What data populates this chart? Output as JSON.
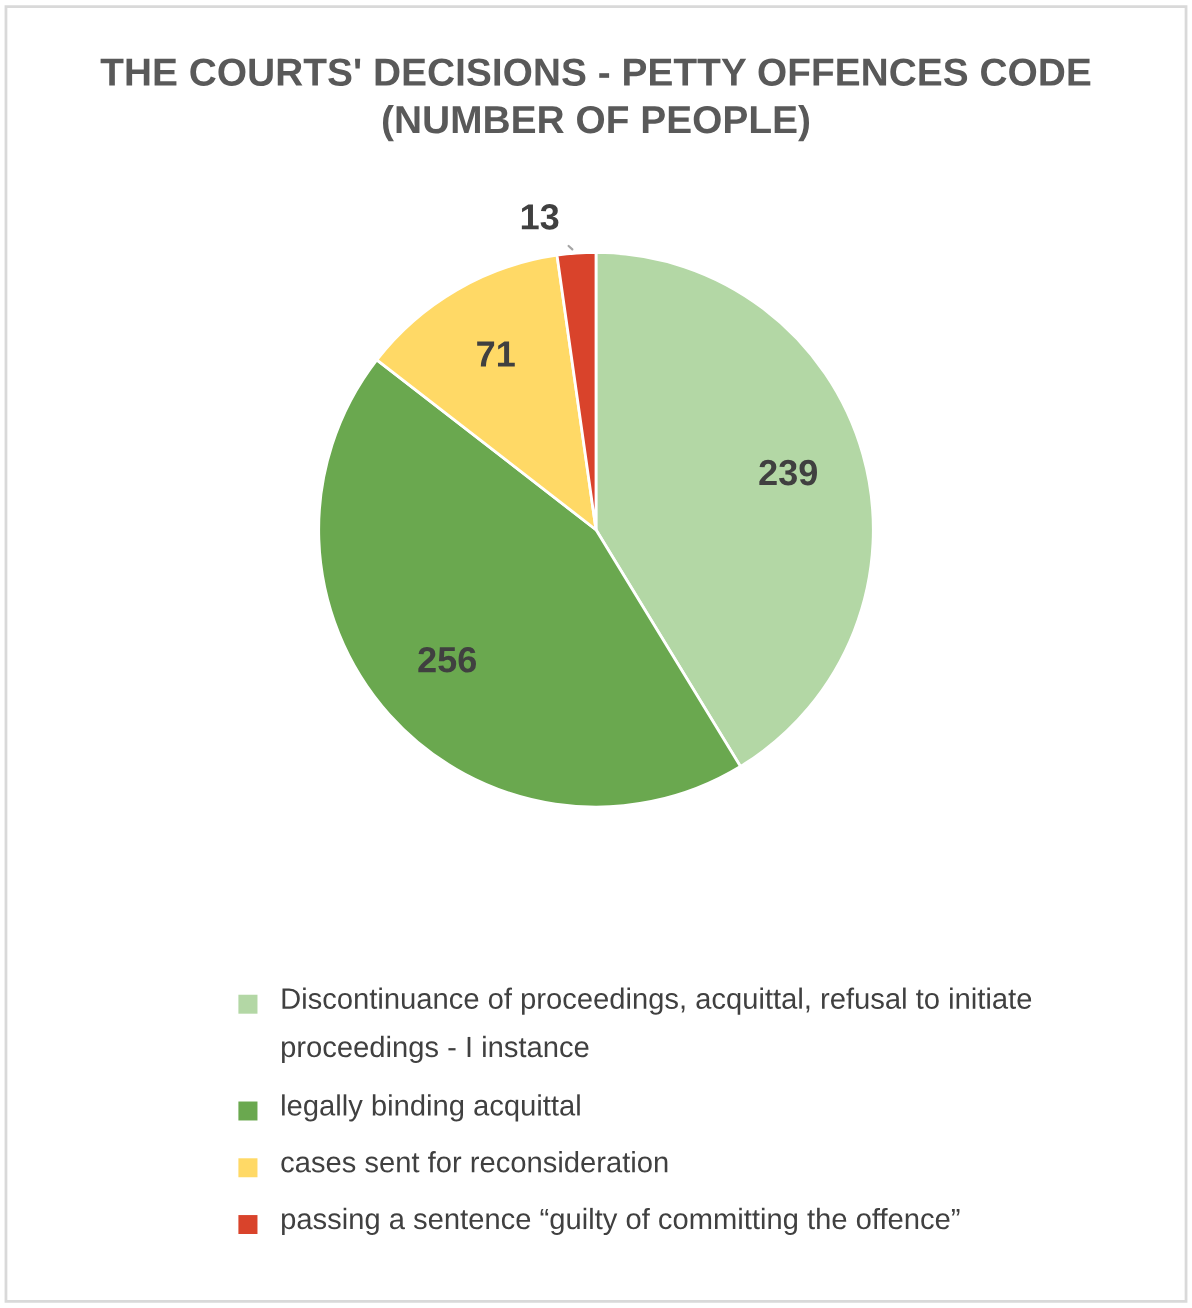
{
  "chart_data": {
    "type": "pie",
    "title": "THE COURTS' DECISIONS - PETTY OFFENCES CODE\n(NUMBER OF PEOPLE)",
    "categories": [
      "Discontinuance of proceedings, acquittal, refusal to initiate proceedings - I instance",
      "legally binding acquittal",
      "cases sent for reconsideration",
      "passing a sentence “guilty of committing the offence”"
    ],
    "values": [
      239,
      256,
      71,
      13
    ],
    "colors": [
      "#b3d7a5",
      "#6aa84f",
      "#ffd966",
      "#d9432b"
    ],
    "data_labels": true,
    "legend": "bottom"
  }
}
